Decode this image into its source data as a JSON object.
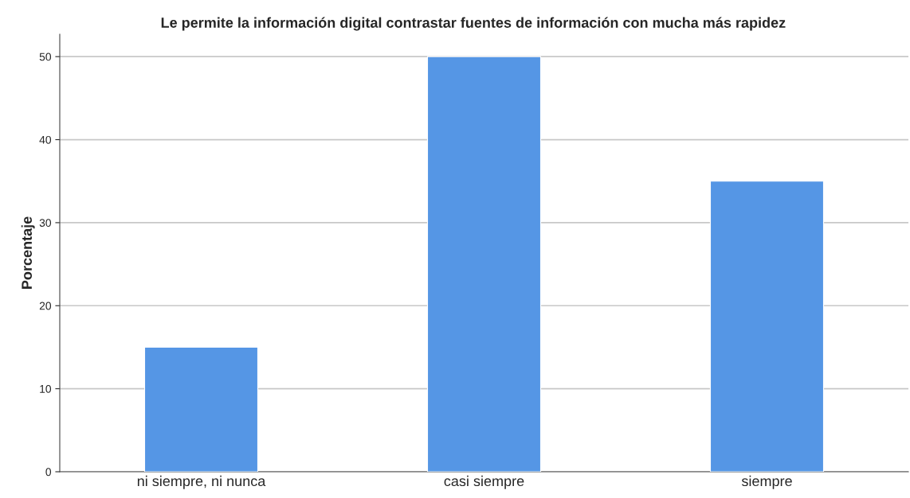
{
  "chart_data": {
    "type": "bar",
    "title": "Le permite la información digital contrastar fuentes de información con mucha más rapidez",
    "ylabel": "Porcentaje",
    "categories": [
      "ni siempre, ni nunca",
      "casi siempre",
      "siempre"
    ],
    "values": [
      15,
      50,
      35
    ],
    "color": "#5596e5",
    "ylim": [
      0,
      52.7
    ],
    "yticks": [
      0,
      10,
      20,
      30,
      40,
      50
    ],
    "grid": "y"
  }
}
